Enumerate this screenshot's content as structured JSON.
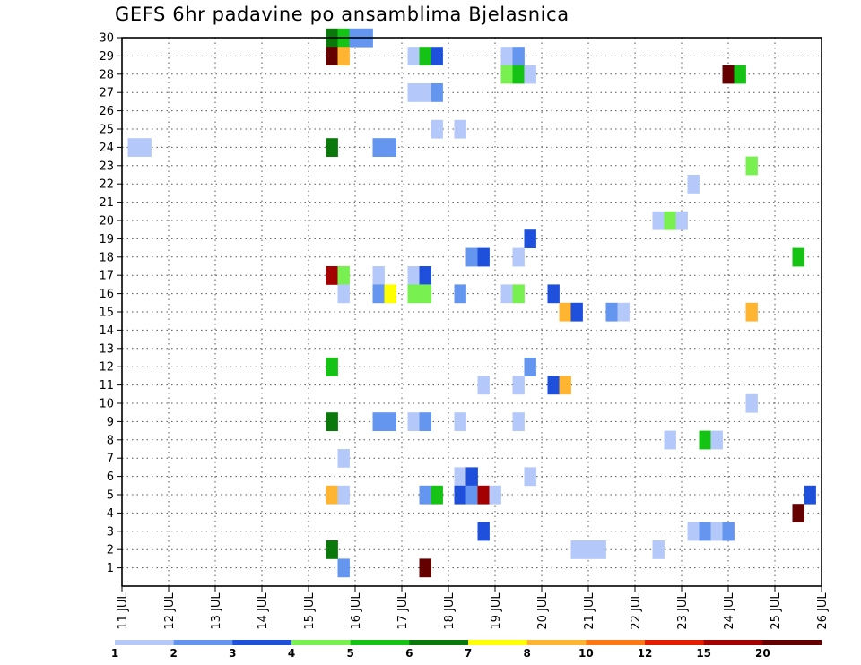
{
  "chart_data": {
    "type": "heatmap",
    "title": "GEFS 6hr padavine po ansamblima Bjelasnica",
    "x_ticks": [
      "11 JUL",
      "12 JUL",
      "13 JUL",
      "14 JUL",
      "15 JUL",
      "16 JUL",
      "17 JUL",
      "18 JUL",
      "19 JUL",
      "20 JUL",
      "21 JUL",
      "22 JUL",
      "23 JUL",
      "24 JUL",
      "25 JUL",
      "26 JUL"
    ],
    "y_ticks": [
      1,
      2,
      3,
      4,
      5,
      6,
      7,
      8,
      9,
      10,
      11,
      12,
      13,
      14,
      15,
      16,
      17,
      18,
      19,
      20,
      21,
      22,
      23,
      24,
      25,
      26,
      27,
      28,
      29,
      30
    ],
    "xlim_days": [
      11,
      26
    ],
    "ylim": [
      0,
      30
    ],
    "grid": true,
    "colorbar": {
      "labels": [
        "1",
        "2",
        "3",
        "4",
        "5",
        "6",
        "7",
        "8",
        "10",
        "12",
        "15",
        "20"
      ],
      "colors": [
        "#b4c8fa",
        "#6496f0",
        "#1e50dc",
        "#78f050",
        "#14c314",
        "#0a780a",
        "#ffff00",
        "#ffb432",
        "#ff7814",
        "#e11e00",
        "#a50000",
        "#640000"
      ]
    },
    "cells": [
      {
        "member": 30,
        "day": 15.5,
        "cls": 5
      },
      {
        "member": 30,
        "day": 15.75,
        "cls": 4
      },
      {
        "member": 30,
        "day": 16.0,
        "cls": 1
      },
      {
        "member": 30,
        "day": 16.25,
        "cls": 1
      },
      {
        "member": 29,
        "day": 15.5,
        "cls": 11
      },
      {
        "member": 29,
        "day": 15.75,
        "cls": 7
      },
      {
        "member": 29,
        "day": 17.25,
        "cls": 0
      },
      {
        "member": 29,
        "day": 17.5,
        "cls": 4
      },
      {
        "member": 29,
        "day": 17.75,
        "cls": 2
      },
      {
        "member": 29,
        "day": 19.25,
        "cls": 0
      },
      {
        "member": 29,
        "day": 19.5,
        "cls": 1
      },
      {
        "member": 28,
        "day": 19.25,
        "cls": 3
      },
      {
        "member": 28,
        "day": 19.5,
        "cls": 4
      },
      {
        "member": 28,
        "day": 19.75,
        "cls": 0
      },
      {
        "member": 28,
        "day": 24.0,
        "cls": 11
      },
      {
        "member": 28,
        "day": 24.25,
        "cls": 4
      },
      {
        "member": 27,
        "day": 17.25,
        "cls": 0
      },
      {
        "member": 27,
        "day": 17.5,
        "cls": 0
      },
      {
        "member": 27,
        "day": 17.75,
        "cls": 1
      },
      {
        "member": 25,
        "day": 17.75,
        "cls": 0
      },
      {
        "member": 25,
        "day": 18.25,
        "cls": 0
      },
      {
        "member": 24,
        "day": 11.25,
        "cls": 0
      },
      {
        "member": 24,
        "day": 11.5,
        "cls": 0
      },
      {
        "member": 24,
        "day": 15.5,
        "cls": 5
      },
      {
        "member": 24,
        "day": 16.5,
        "cls": 1
      },
      {
        "member": 24,
        "day": 16.75,
        "cls": 1
      },
      {
        "member": 23,
        "day": 24.5,
        "cls": 3
      },
      {
        "member": 22,
        "day": 23.25,
        "cls": 0
      },
      {
        "member": 20,
        "day": 22.5,
        "cls": 0
      },
      {
        "member": 20,
        "day": 22.75,
        "cls": 3
      },
      {
        "member": 20,
        "day": 23.0,
        "cls": 0
      },
      {
        "member": 19,
        "day": 19.75,
        "cls": 2
      },
      {
        "member": 18,
        "day": 18.5,
        "cls": 1
      },
      {
        "member": 18,
        "day": 18.75,
        "cls": 2
      },
      {
        "member": 18,
        "day": 19.5,
        "cls": 0
      },
      {
        "member": 18,
        "day": 25.5,
        "cls": 4
      },
      {
        "member": 17,
        "day": 15.5,
        "cls": 10
      },
      {
        "member": 17,
        "day": 15.75,
        "cls": 3
      },
      {
        "member": 17,
        "day": 16.5,
        "cls": 0
      },
      {
        "member": 17,
        "day": 17.25,
        "cls": 0
      },
      {
        "member": 17,
        "day": 17.5,
        "cls": 2
      },
      {
        "member": 16,
        "day": 15.75,
        "cls": 0
      },
      {
        "member": 16,
        "day": 16.5,
        "cls": 1
      },
      {
        "member": 16,
        "day": 16.75,
        "cls": 6
      },
      {
        "member": 16,
        "day": 17.25,
        "cls": 3
      },
      {
        "member": 16,
        "day": 17.5,
        "cls": 3
      },
      {
        "member": 16,
        "day": 18.25,
        "cls": 1
      },
      {
        "member": 16,
        "day": 19.25,
        "cls": 0
      },
      {
        "member": 16,
        "day": 19.5,
        "cls": 3
      },
      {
        "member": 16,
        "day": 20.25,
        "cls": 2
      },
      {
        "member": 15,
        "day": 20.5,
        "cls": 7
      },
      {
        "member": 15,
        "day": 20.75,
        "cls": 2
      },
      {
        "member": 15,
        "day": 21.5,
        "cls": 1
      },
      {
        "member": 15,
        "day": 21.75,
        "cls": 0
      },
      {
        "member": 15,
        "day": 24.5,
        "cls": 7
      },
      {
        "member": 12,
        "day": 15.5,
        "cls": 4
      },
      {
        "member": 12,
        "day": 19.75,
        "cls": 1
      },
      {
        "member": 11,
        "day": 18.75,
        "cls": 0
      },
      {
        "member": 11,
        "day": 19.5,
        "cls": 0
      },
      {
        "member": 11,
        "day": 20.25,
        "cls": 2
      },
      {
        "member": 11,
        "day": 20.5,
        "cls": 7
      },
      {
        "member": 10,
        "day": 24.5,
        "cls": 0
      },
      {
        "member": 9,
        "day": 15.5,
        "cls": 5
      },
      {
        "member": 9,
        "day": 16.5,
        "cls": 1
      },
      {
        "member": 9,
        "day": 16.75,
        "cls": 1
      },
      {
        "member": 9,
        "day": 17.25,
        "cls": 0
      },
      {
        "member": 9,
        "day": 17.5,
        "cls": 1
      },
      {
        "member": 9,
        "day": 18.25,
        "cls": 0
      },
      {
        "member": 9,
        "day": 19.5,
        "cls": 0
      },
      {
        "member": 8,
        "day": 22.75,
        "cls": 0
      },
      {
        "member": 8,
        "day": 23.5,
        "cls": 4
      },
      {
        "member": 8,
        "day": 23.75,
        "cls": 0
      },
      {
        "member": 7,
        "day": 15.75,
        "cls": 0
      },
      {
        "member": 6,
        "day": 18.25,
        "cls": 0
      },
      {
        "member": 6,
        "day": 18.5,
        "cls": 2
      },
      {
        "member": 6,
        "day": 19.75,
        "cls": 0
      },
      {
        "member": 5,
        "day": 15.5,
        "cls": 7
      },
      {
        "member": 5,
        "day": 15.75,
        "cls": 0
      },
      {
        "member": 5,
        "day": 17.5,
        "cls": 1
      },
      {
        "member": 5,
        "day": 17.75,
        "cls": 4
      },
      {
        "member": 5,
        "day": 18.25,
        "cls": 2
      },
      {
        "member": 5,
        "day": 18.5,
        "cls": 1
      },
      {
        "member": 5,
        "day": 18.75,
        "cls": 10
      },
      {
        "member": 5,
        "day": 19.0,
        "cls": 0
      },
      {
        "member": 5,
        "day": 25.75,
        "cls": 2
      },
      {
        "member": 4,
        "day": 25.5,
        "cls": 11
      },
      {
        "member": 3,
        "day": 18.75,
        "cls": 2
      },
      {
        "member": 3,
        "day": 23.25,
        "cls": 0
      },
      {
        "member": 3,
        "day": 23.5,
        "cls": 1
      },
      {
        "member": 3,
        "day": 23.75,
        "cls": 0
      },
      {
        "member": 3,
        "day": 24.0,
        "cls": 1
      },
      {
        "member": 2,
        "day": 15.5,
        "cls": 5
      },
      {
        "member": 2,
        "day": 20.75,
        "cls": 0
      },
      {
        "member": 2,
        "day": 21.0,
        "cls": 0
      },
      {
        "member": 2,
        "day": 21.25,
        "cls": 0
      },
      {
        "member": 2,
        "day": 22.5,
        "cls": 0
      },
      {
        "member": 1,
        "day": 15.75,
        "cls": 1
      },
      {
        "member": 1,
        "day": 17.5,
        "cls": 11
      }
    ]
  }
}
